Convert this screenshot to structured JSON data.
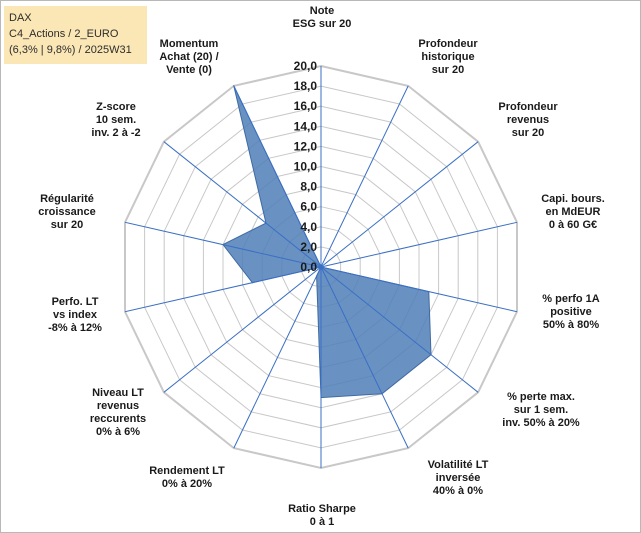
{
  "info_box": {
    "line1": "DAX",
    "line2": "C4_Actions / 2_EURO",
    "line3": "(6,3% | 9,8%) / 2025W31"
  },
  "colors": {
    "fill": "#4f7fb8",
    "stroke": "#3f6aa3",
    "spoke": "#3a6fc4",
    "grid": "#c8c8c8",
    "info_bg": "#fbe7b5"
  },
  "chart_data": {
    "type": "radar",
    "title": "",
    "rmin": 0,
    "rmax": 20,
    "tick_labels": [
      "0,0",
      "2,0",
      "4,0",
      "6,0",
      "8,0",
      "10,0",
      "12,0",
      "14,0",
      "16,0",
      "18,0",
      "20,0"
    ],
    "categories": [
      [
        "Note",
        "ESG sur 20"
      ],
      [
        "Profondeur",
        "historique",
        "sur 20"
      ],
      [
        "Profondeur",
        "revenus",
        "sur 20"
      ],
      [
        "Capi. bours.",
        "en MdEUR",
        "0 à 60 G€"
      ],
      [
        "% perfo 1A",
        "positive",
        "50% à 80%"
      ],
      [
        "% perte max.",
        "sur 1 sem.",
        "inv. 50% à 20%"
      ],
      [
        "Volatilité LT",
        "inversée",
        "40% à 0%"
      ],
      [
        "Ratio Sharpe",
        "0 à 1"
      ],
      [
        "Rendement LT",
        "0% à 20%"
      ],
      [
        "Niveau LT",
        "revenus",
        "reccurents",
        "0% à 6%"
      ],
      [
        "Perfo. LT",
        "vs index",
        "-8% à 12%"
      ],
      [
        "Régularité",
        "croissance",
        "sur 20"
      ],
      [
        "Z-score",
        "10 sem.",
        "inv. 2 à -2"
      ],
      [
        "Momentum",
        "Achat (20) /",
        "Vente (0)"
      ]
    ],
    "series": [
      {
        "values": [
          0,
          0,
          0,
          0,
          11,
          14,
          14,
          13,
          1,
          0,
          7,
          10,
          7,
          20
        ]
      }
    ]
  }
}
